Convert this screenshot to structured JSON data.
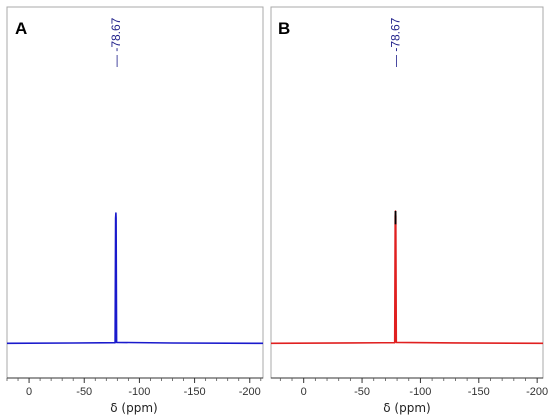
{
  "chart_data": [
    {
      "type": "line",
      "panel_label": "A",
      "xlabel": "δ (ppm)",
      "x_reversed": true,
      "xlim": [
        20,
        -212
      ],
      "x_ticks": [
        0,
        -50,
        -100,
        -150,
        -200
      ],
      "ylim": [
        0,
        1
      ],
      "peak_annotation": "— -78.67",
      "color": "#1a1acc",
      "series": [
        {
          "points": [
            [
              20,
              0.005
            ],
            [
              -40,
              0.008
            ],
            [
              -78.0,
              0.01
            ],
            [
              -78.4,
              0.96
            ],
            [
              -78.67,
              1.0
            ],
            [
              -78.9,
              0.96
            ],
            [
              -79.3,
              0.012
            ],
            [
              -130,
              0.008
            ],
            [
              -212,
              0.005
            ]
          ]
        }
      ]
    },
    {
      "type": "line",
      "panel_label": "B",
      "xlabel": "δ (ppm)",
      "x_reversed": true,
      "xlim": [
        28,
        -205
      ],
      "x_ticks": [
        0,
        -50,
        -100,
        -150,
        -200
      ],
      "ylim": [
        0,
        1
      ],
      "peak_annotation": "— -78.67",
      "color": "#e02020",
      "peak_top_color": "#000000",
      "series": [
        {
          "points": [
            [
              28,
              0.005
            ],
            [
              -40,
              0.008
            ],
            [
              -78.0,
              0.01
            ],
            [
              -78.4,
              0.96
            ],
            [
              -78.67,
              1.0
            ],
            [
              -78.9,
              0.96
            ],
            [
              -79.3,
              0.012
            ],
            [
              -130,
              0.008
            ],
            [
              -205,
              0.005
            ]
          ]
        }
      ]
    }
  ]
}
